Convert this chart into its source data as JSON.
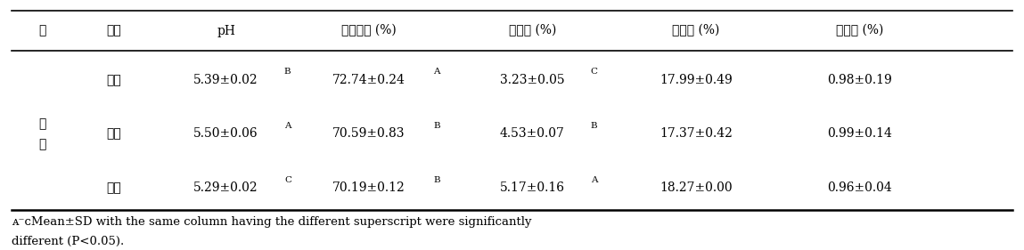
{
  "headers": [
    "종",
    "부위",
    "pH",
    "수분함량 (%)",
    "조지방 (%)",
    "조단백 (%)",
    "조회분 (%)"
  ],
  "col_종": "우\n육",
  "rows": [
    {
      "부위": "우둔",
      "pH": "5.39±0.02",
      "pH_sup": "B",
      "수분함량": "72.74±0.24",
      "수분함량_sup": "A",
      "조지방": "3.23±0.05",
      "조지방_sup": "C",
      "조단백": "17.99±0.49",
      "조단백_sup": "",
      "조회분": "0.98±0.19",
      "조회분_sup": ""
    },
    {
      "부위": "설도",
      "pH": "5.50±0.06",
      "pH_sup": "A",
      "수분함량": "70.59±0.83",
      "수분함량_sup": "B",
      "조지방": "4.53±0.07",
      "조지방_sup": "B",
      "조단백": "17.37±0.42",
      "조단백_sup": "",
      "조회분": "0.99±0.14",
      "조회분_sup": ""
    },
    {
      "부위": "보섭",
      "pH": "5.29±0.02",
      "pH_sup": "C",
      "수분함량": "70.19±0.12",
      "수분함량_sup": "B",
      "조지방": "5.17±0.16",
      "조지방_sup": "A",
      "조단백": "18.27±0.00",
      "조단백_sup": "",
      "조회분": "0.96±0.04",
      "조회분_sup": ""
    }
  ],
  "footnote_line1": "ᴀ⁻ᴄMean±SD with the same column having the different superscript were significantly",
  "footnote_line2": "different (P<0.05).",
  "bg_color": "#ffffff",
  "text_color": "#000000",
  "font_size": 10,
  "header_font_size": 10
}
